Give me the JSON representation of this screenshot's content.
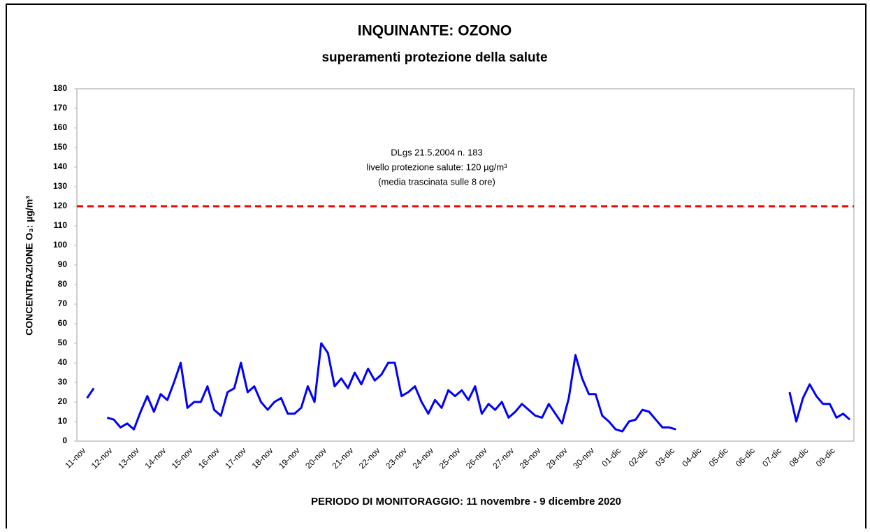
{
  "chart_data": {
    "type": "line",
    "title": "INQUINANTE: OZONO",
    "subtitle": "superamenti protezione della salute",
    "y_label": "CONCENTRAZIONE O₃: µg/m³",
    "x_label": "PERIODO DI MONITORAGGIO: 11 novembre - 9 dicembre 2020",
    "categories": [
      "11-nov",
      null,
      null,
      null,
      "12-nov",
      null,
      null,
      null,
      "13-nov",
      null,
      null,
      null,
      "14-nov",
      null,
      null,
      null,
      "15-nov",
      null,
      null,
      null,
      "16-nov",
      null,
      null,
      null,
      "17-nov",
      null,
      null,
      null,
      "18-nov",
      null,
      null,
      null,
      "19-nov",
      null,
      null,
      null,
      "20-nov",
      null,
      null,
      null,
      "21-nov",
      null,
      null,
      null,
      "22-nov",
      null,
      null,
      null,
      "23-nov",
      null,
      null,
      null,
      "24-nov",
      null,
      null,
      null,
      "25-nov",
      null,
      null,
      null,
      "26-nov",
      null,
      null,
      null,
      "27-nov",
      null,
      null,
      null,
      "28-nov",
      null,
      null,
      null,
      "29-nov",
      null,
      null,
      null,
      "30-nov",
      null,
      null,
      null,
      "01-dic",
      null,
      null,
      null,
      "02-dic",
      null,
      null,
      null,
      "03-dic",
      null,
      null,
      null,
      "04-dic",
      null,
      null,
      null,
      "05-dic",
      null,
      null,
      null,
      "06-dic",
      null,
      null,
      null,
      "07-dic",
      null,
      null,
      null,
      "08-dic",
      null,
      null,
      null,
      "09-dic",
      null,
      null,
      null
    ],
    "series": [
      {
        "name": "O3",
        "color": "#0000ff",
        "values": [
          null,
          22,
          27,
          null,
          12,
          11,
          7,
          9,
          6,
          15,
          23,
          15,
          24,
          21,
          30,
          40,
          17,
          20,
          20,
          28,
          16,
          13,
          25,
          27,
          40,
          25,
          28,
          20,
          16,
          20,
          22,
          14,
          14,
          17,
          28,
          20,
          50,
          45,
          28,
          32,
          27,
          35,
          29,
          37,
          31,
          34,
          40,
          40,
          23,
          25,
          28,
          20,
          14,
          21,
          17,
          26,
          23,
          26,
          21,
          28,
          14,
          19,
          16,
          20,
          12,
          15,
          19,
          16,
          13,
          12,
          19,
          14,
          9,
          22,
          44,
          32,
          24,
          24,
          13,
          10,
          6,
          5,
          10,
          11,
          16,
          15,
          11,
          7,
          7,
          6,
          null,
          null,
          null,
          null,
          null,
          null,
          null,
          null,
          null,
          null,
          null,
          null,
          null,
          null,
          null,
          null,
          25,
          10,
          22,
          29,
          23,
          19,
          19,
          12,
          14,
          11
        ]
      }
    ],
    "threshold": {
      "value": 120,
      "color": "#ff0000",
      "label": [
        "DLgs 21.5.2004 n. 183",
        "livello protezione salute: 120 µg/m³",
        "(media trascinata sulle 8 ore)"
      ]
    },
    "ylim": [
      0,
      180
    ],
    "yticks": [
      0,
      10,
      20,
      30,
      40,
      50,
      60,
      70,
      80,
      90,
      100,
      110,
      120,
      130,
      140,
      150,
      160,
      170,
      180
    ],
    "grid": false
  }
}
